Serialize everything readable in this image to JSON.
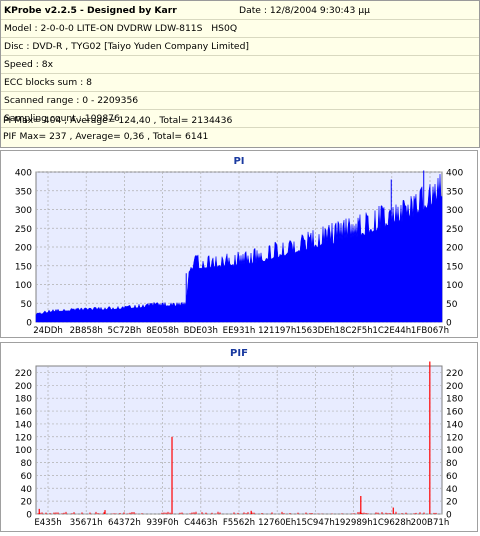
{
  "header": {
    "title": "KProbe v2.2.5 - Designed by Karr",
    "date": "Date : 12/8/2004 9:30:43 μμ",
    "lines": [
      "Model : 2-0-0-0 LITE-ON DVDRW LDW-811S   HS0Q",
      "Disc : DVD-R , TYG02 [Taiyo Yuden Company Limited]",
      "Speed : 8x",
      "ECC blocks sum : 8",
      "Scanned range : 0 - 2209356",
      "Sampling count : 109876",
      "PI Max= 404 , Average= 124,40 , Total= 2134436",
      "PIF Max= 237 , Average= 0,36 , Total= 6141"
    ]
  },
  "colors": {
    "panel_bg": "#ffffe8",
    "plot_bg": "#e8ecff",
    "pi_fill": "#0000ff",
    "pif_bar": "#ff0000",
    "grid": "#b0b0b0",
    "title_color": "#1a3aa0"
  },
  "chart_data": [
    {
      "type": "area",
      "title": "PI",
      "ylim": [
        0,
        400
      ],
      "yticks": [
        0,
        50,
        100,
        150,
        200,
        250,
        300,
        350,
        400
      ],
      "xticks": [
        "24DDh",
        "2B858h",
        "5C72Bh",
        "8E058h",
        "BDE03h",
        "EE931h",
        "121197h",
        "1563DEh",
        "18C2F5h",
        "1C2E44h",
        "1FB067h"
      ],
      "x_range_hex": [
        "0",
        "21B6CCh"
      ],
      "grid": true,
      "series": [
        {
          "values_fraction_of_range": [
            0.0,
            0.01,
            0.02,
            0.035,
            0.04,
            0.1,
            0.15,
            0.2,
            0.25,
            0.29,
            0.33,
            0.37,
            0.38,
            0.4,
            0.45,
            0.5,
            0.55,
            0.6,
            0.65,
            0.7,
            0.75,
            0.8,
            0.85,
            0.9,
            0.93,
            0.96,
            0.98,
            1.0
          ],
          "values": [
            20,
            22,
            25,
            28,
            30,
            32,
            34,
            36,
            40,
            45,
            45,
            46,
            150,
            152,
            155,
            160,
            170,
            185,
            200,
            215,
            230,
            245,
            265,
            285,
            300,
            320,
            340,
            360
          ]
        }
      ],
      "spikes": [
        {
          "x_fraction": 0.37,
          "value": 130
        },
        {
          "x_fraction": 0.875,
          "value": 380
        },
        {
          "x_fraction": 0.955,
          "value": 404
        }
      ]
    },
    {
      "type": "bar",
      "title": "PIF",
      "ylim": [
        0,
        230
      ],
      "yticks": [
        0,
        20,
        40,
        60,
        80,
        100,
        120,
        140,
        160,
        180,
        200,
        220
      ],
      "xticks": [
        "E435h",
        "35671h",
        "64372h",
        "939F0h",
        "C4463h",
        "F5562h",
        "12760Eh",
        "15C947h",
        "192989h",
        "1C9628h",
        "200B71h"
      ],
      "grid": true,
      "baseline_level": 3,
      "spikes": [
        {
          "x_fraction": 0.008,
          "value": 8
        },
        {
          "x_fraction": 0.17,
          "value": 6
        },
        {
          "x_fraction": 0.335,
          "value": 120
        },
        {
          "x_fraction": 0.53,
          "value": 5
        },
        {
          "x_fraction": 0.8,
          "value": 28
        },
        {
          "x_fraction": 0.88,
          "value": 10
        },
        {
          "x_fraction": 0.97,
          "value": 237
        }
      ]
    }
  ]
}
